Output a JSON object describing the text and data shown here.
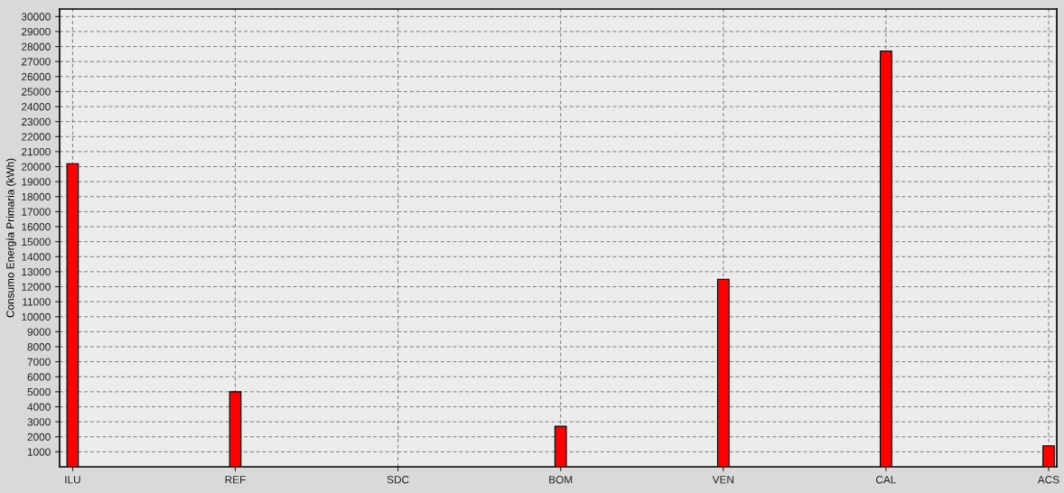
{
  "chart_data": {
    "type": "bar",
    "ylabel": "Consumo Energía Primaria (kWh)",
    "categories": [
      "ILU",
      "REF",
      "SDC",
      "BOM",
      "VEN",
      "CAL",
      "ACS"
    ],
    "series": [
      {
        "color": "#ff0000",
        "values": [
          20200,
          5000,
          null,
          2700,
          12500,
          27700,
          1400
        ]
      }
    ],
    "ylim": [
      0,
      30500
    ],
    "yticks": [
      1000,
      2000,
      3000,
      4000,
      5000,
      6000,
      7000,
      8000,
      9000,
      10000,
      11000,
      12000,
      13000,
      14000,
      15000,
      16000,
      17000,
      18000,
      19000,
      20000,
      21000,
      22000,
      23000,
      24000,
      25000,
      26000,
      27000,
      28000,
      29000,
      30000
    ],
    "grid": true
  }
}
